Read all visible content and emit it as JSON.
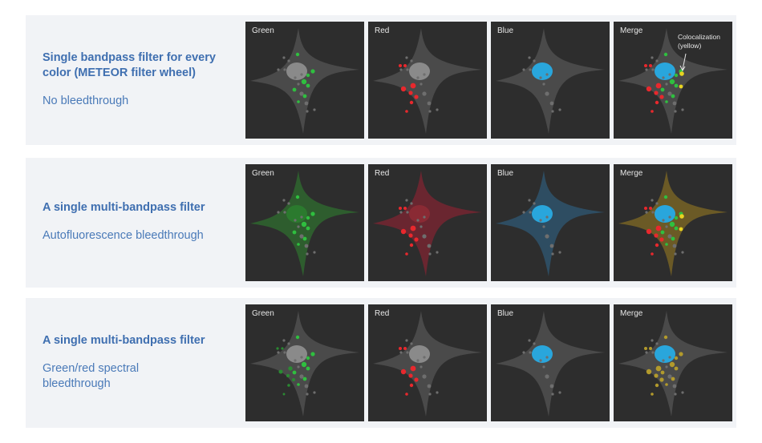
{
  "rows": [
    {
      "title": "Single bandpass filter for every color (METEOR filter wheel)",
      "subtitle": "No bleedthrough",
      "tint": {
        "Green": null,
        "Red": null,
        "Blue": null,
        "Merge": null
      },
      "panels": [
        "Green",
        "Red",
        "Blue",
        "Merge"
      ],
      "annotation": "Colocalization\n(yellow)"
    },
    {
      "title": "A single multi-bandpass filter",
      "subtitle": "Autofluorescence bleedthrough",
      "tint": {
        "Green": "#2e5d2e",
        "Red": "#6a2630",
        "Blue": "#2e4d62",
        "Merge": "#6b5a26"
      },
      "panels": [
        "Green",
        "Red",
        "Blue",
        "Merge"
      ]
    },
    {
      "title": "A single multi-bandpass filter",
      "subtitle": "Green/red spectral bleedthrough",
      "tint": {
        "Green": null,
        "Red": null,
        "Blue": null,
        "Merge": null
      },
      "panels": [
        "Green",
        "Red",
        "Blue",
        "Merge"
      ]
    }
  ],
  "colors": {
    "cell_default": "#4a4a4a",
    "green": "#2fbf3f",
    "red": "#e8282d",
    "blue": "#29a6dc",
    "yellow": "#e8d321",
    "olive": "#b29a2c",
    "dot_dim": "#6e6e6e",
    "nucleus_gray": "#8a8a8a"
  }
}
